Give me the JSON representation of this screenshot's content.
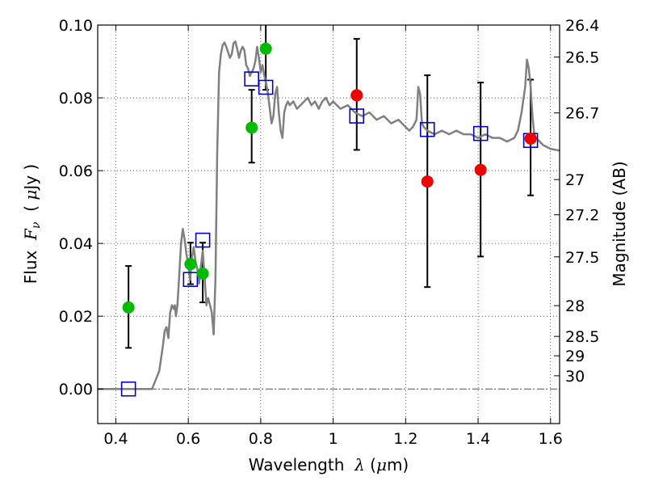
{
  "chart_data": {
    "type": "scatter",
    "x_axis": {
      "label_parts": [
        "Wavelength  ",
        "λ",
        " (",
        "μ",
        "m)"
      ],
      "range": [
        0.35,
        1.625
      ],
      "ticks": [
        {
          "value": 0.4,
          "label": "0.4"
        },
        {
          "value": 0.6,
          "label": "0.6"
        },
        {
          "value": 0.8,
          "label": "0.8"
        },
        {
          "value": 1.0,
          "label": "1"
        },
        {
          "value": 1.2,
          "label": "1.2"
        },
        {
          "value": 1.4,
          "label": "1.4"
        },
        {
          "value": 1.6,
          "label": "1.6"
        }
      ]
    },
    "y_axis": {
      "label_parts": [
        "Flux  ",
        "F",
        "ν",
        "  ( ",
        "μ",
        "Jy )"
      ],
      "range": [
        -0.0095,
        0.1
      ],
      "ticks": [
        {
          "value": 0.0,
          "label": "0.00"
        },
        {
          "value": 0.02,
          "label": "0.02"
        },
        {
          "value": 0.04,
          "label": "0.04"
        },
        {
          "value": 0.06,
          "label": "0.06"
        },
        {
          "value": 0.08,
          "label": "0.08"
        },
        {
          "value": 0.1,
          "label": "0.10"
        }
      ]
    },
    "y2_axis": {
      "label": "Magnitude (AB)",
      "ticks": [
        {
          "magnitude": 26.4,
          "label": "26.4"
        },
        {
          "magnitude": 26.5,
          "label": "26.5"
        },
        {
          "magnitude": 26.7,
          "label": "26.7"
        },
        {
          "magnitude": 27.0,
          "label": "27"
        },
        {
          "magnitude": 27.2,
          "label": "27.2"
        },
        {
          "magnitude": 27.5,
          "label": "27.5"
        },
        {
          "magnitude": 28.0,
          "label": "28"
        },
        {
          "magnitude": 28.5,
          "label": "28.5"
        },
        {
          "magnitude": 29.0,
          "label": "29"
        },
        {
          "magnitude": 30.0,
          "label": "30"
        }
      ]
    },
    "grid": true,
    "zero_line": true,
    "series": [
      {
        "kind": "errorbar",
        "color": "#000000",
        "points": [
          {
            "x": 0.435,
            "ylow": 0.0113,
            "yhigh": 0.0338
          },
          {
            "x": 0.606,
            "ylow": 0.0288,
            "yhigh": 0.0402
          },
          {
            "x": 0.64,
            "ylow": 0.0238,
            "yhigh": 0.0402
          },
          {
            "x": 0.775,
            "ylow": 0.0622,
            "yhigh": 0.0822
          },
          {
            "x": 0.814,
            "ylow": 0.0822,
            "yhigh": 0.1
          },
          {
            "x": 1.065,
            "ylow": 0.0657,
            "yhigh": 0.0962
          },
          {
            "x": 1.26,
            "ylow": 0.028,
            "yhigh": 0.0862
          },
          {
            "x": 1.407,
            "ylow": 0.0364,
            "yhigh": 0.0842
          },
          {
            "x": 1.545,
            "ylow": 0.0532,
            "yhigh": 0.085
          }
        ]
      },
      {
        "kind": "template_spectrum",
        "color": "#808080",
        "x": [
          0.35,
          0.48,
          0.5,
          0.52,
          0.53,
          0.535,
          0.54,
          0.545,
          0.55,
          0.555,
          0.56,
          0.563,
          0.566,
          0.57,
          0.575,
          0.58,
          0.585,
          0.59,
          0.595,
          0.6,
          0.605,
          0.61,
          0.615,
          0.62,
          0.625,
          0.63,
          0.635,
          0.64,
          0.645,
          0.65,
          0.655,
          0.66,
          0.665,
          0.67,
          0.675,
          0.68,
          0.685,
          0.69,
          0.695,
          0.7,
          0.705,
          0.71,
          0.715,
          0.72,
          0.725,
          0.73,
          0.735,
          0.74,
          0.745,
          0.75,
          0.755,
          0.76,
          0.765,
          0.77,
          0.775,
          0.78,
          0.785,
          0.79,
          0.795,
          0.8,
          0.805,
          0.81,
          0.815,
          0.82,
          0.825,
          0.83,
          0.835,
          0.84,
          0.845,
          0.85,
          0.855,
          0.86,
          0.865,
          0.87,
          0.875,
          0.88,
          0.89,
          0.9,
          0.91,
          0.92,
          0.93,
          0.94,
          0.95,
          0.96,
          0.97,
          0.98,
          0.99,
          1.0,
          1.02,
          1.04,
          1.06,
          1.08,
          1.1,
          1.12,
          1.14,
          1.16,
          1.18,
          1.2,
          1.21,
          1.22,
          1.23,
          1.235,
          1.24,
          1.245,
          1.25,
          1.26,
          1.28,
          1.3,
          1.32,
          1.34,
          1.36,
          1.38,
          1.4,
          1.42,
          1.44,
          1.46,
          1.48,
          1.5,
          1.51,
          1.52,
          1.53,
          1.535,
          1.54,
          1.545,
          1.55,
          1.555,
          1.56,
          1.57,
          1.58,
          1.6,
          1.625
        ],
        "y": [
          0.0,
          0.0,
          0.0,
          0.005,
          0.012,
          0.016,
          0.017,
          0.014,
          0.021,
          0.023,
          0.022,
          0.023,
          0.02,
          0.023,
          0.031,
          0.04,
          0.044,
          0.041,
          0.037,
          0.034,
          0.03,
          0.036,
          0.039,
          0.035,
          0.033,
          0.029,
          0.034,
          0.038,
          0.031,
          0.023,
          0.025,
          0.023,
          0.021,
          0.015,
          0.03,
          0.065,
          0.087,
          0.092,
          0.0945,
          0.0952,
          0.094,
          0.0925,
          0.091,
          0.092,
          0.095,
          0.0955,
          0.0935,
          0.091,
          0.093,
          0.094,
          0.093,
          0.089,
          0.088,
          0.086,
          0.087,
          0.088,
          0.09,
          0.094,
          0.091,
          0.087,
          0.089,
          0.086,
          0.084,
          0.081,
          0.077,
          0.073,
          0.075,
          0.081,
          0.083,
          0.076,
          0.071,
          0.069,
          0.076,
          0.078,
          0.079,
          0.078,
          0.079,
          0.077,
          0.078,
          0.079,
          0.08,
          0.078,
          0.079,
          0.077,
          0.079,
          0.08,
          0.078,
          0.079,
          0.077,
          0.078,
          0.076,
          0.075,
          0.076,
          0.074,
          0.075,
          0.073,
          0.074,
          0.072,
          0.071,
          0.072,
          0.074,
          0.083,
          0.081,
          0.073,
          0.072,
          0.071,
          0.07,
          0.071,
          0.07,
          0.071,
          0.07,
          0.07,
          0.069,
          0.07,
          0.069,
          0.069,
          0.068,
          0.069,
          0.071,
          0.076,
          0.083,
          0.0905,
          0.088,
          0.083,
          0.075,
          0.07,
          0.069,
          0.068,
          0.067,
          0.066,
          0.0655
        ]
      },
      {
        "kind": "model_photometry",
        "marker": "open-square",
        "color": "#0000cc",
        "points": [
          {
            "x": 0.435,
            "y": 0.0
          },
          {
            "x": 0.606,
            "y": 0.0301
          },
          {
            "x": 0.64,
            "y": 0.0409
          },
          {
            "x": 0.775,
            "y": 0.0852
          },
          {
            "x": 0.814,
            "y": 0.0829
          },
          {
            "x": 1.065,
            "y": 0.075
          },
          {
            "x": 1.26,
            "y": 0.0713
          },
          {
            "x": 1.407,
            "y": 0.0702
          },
          {
            "x": 1.545,
            "y": 0.0683
          }
        ]
      },
      {
        "kind": "observed_detected",
        "marker": "filled-circle",
        "color": "#00bb00",
        "points": [
          {
            "x": 0.435,
            "y": 0.0224
          },
          {
            "x": 0.606,
            "y": 0.0343
          },
          {
            "x": 0.64,
            "y": 0.0317
          },
          {
            "x": 0.775,
            "y": 0.0718
          },
          {
            "x": 0.814,
            "y": 0.0935
          }
        ]
      },
      {
        "kind": "observed_ir",
        "marker": "filled-circle",
        "color": "#ee0000",
        "points": [
          {
            "x": 1.065,
            "y": 0.0807
          },
          {
            "x": 1.26,
            "y": 0.057
          },
          {
            "x": 1.407,
            "y": 0.0602
          },
          {
            "x": 1.545,
            "y": 0.0688
          }
        ]
      }
    ]
  }
}
